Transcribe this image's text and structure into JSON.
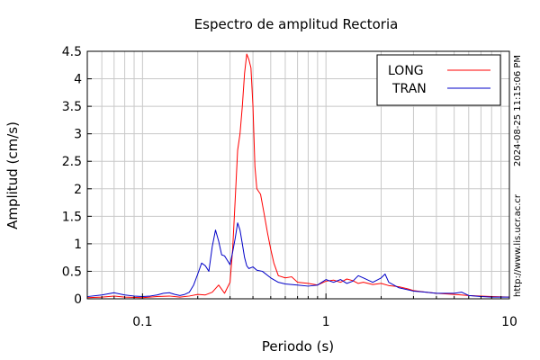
{
  "chart_data": {
    "type": "line",
    "title": "Espectro de amplitud Rectoria",
    "xlabel": "Periodo (s)",
    "ylabel": "Amplitud (cm/s)",
    "x_scale": "log",
    "xlim": [
      0.05,
      10
    ],
    "ylim": [
      0,
      4.5
    ],
    "x_ticks": [
      {
        "value": 0.1,
        "label": "0.1"
      },
      {
        "value": 1,
        "label": "1"
      },
      {
        "value": 10,
        "label": "10"
      }
    ],
    "y_ticks": [
      {
        "value": 0,
        "label": "0"
      },
      {
        "value": 0.5,
        "label": "0.5"
      },
      {
        "value": 1,
        "label": "1"
      },
      {
        "value": 1.5,
        "label": "1.5"
      },
      {
        "value": 2,
        "label": "2"
      },
      {
        "value": 2.5,
        "label": "2.5"
      },
      {
        "value": 3,
        "label": "3"
      },
      {
        "value": 3.5,
        "label": "3.5"
      },
      {
        "value": 4,
        "label": "4"
      },
      {
        "value": 4.5,
        "label": "4.5"
      }
    ],
    "grid": true,
    "legend_position": "top-right",
    "series": [
      {
        "name": "LONG",
        "color": "#ff0000",
        "points": [
          [
            0.05,
            0.02
          ],
          [
            0.06,
            0.03
          ],
          [
            0.07,
            0.05
          ],
          [
            0.08,
            0.03
          ],
          [
            0.1,
            0.02
          ],
          [
            0.12,
            0.04
          ],
          [
            0.14,
            0.05
          ],
          [
            0.16,
            0.03
          ],
          [
            0.18,
            0.05
          ],
          [
            0.2,
            0.08
          ],
          [
            0.22,
            0.07
          ],
          [
            0.24,
            0.12
          ],
          [
            0.26,
            0.25
          ],
          [
            0.28,
            0.1
          ],
          [
            0.3,
            0.3
          ],
          [
            0.31,
            0.9
          ],
          [
            0.32,
            1.8
          ],
          [
            0.33,
            2.7
          ],
          [
            0.34,
            3.0
          ],
          [
            0.35,
            3.5
          ],
          [
            0.36,
            4.1
          ],
          [
            0.37,
            4.45
          ],
          [
            0.38,
            4.35
          ],
          [
            0.39,
            4.2
          ],
          [
            0.4,
            3.5
          ],
          [
            0.41,
            2.4
          ],
          [
            0.42,
            2.0
          ],
          [
            0.44,
            1.9
          ],
          [
            0.46,
            1.55
          ],
          [
            0.48,
            1.2
          ],
          [
            0.5,
            0.9
          ],
          [
            0.52,
            0.65
          ],
          [
            0.55,
            0.42
          ],
          [
            0.6,
            0.38
          ],
          [
            0.65,
            0.4
          ],
          [
            0.7,
            0.3
          ],
          [
            0.8,
            0.28
          ],
          [
            0.9,
            0.25
          ],
          [
            1.0,
            0.32
          ],
          [
            1.1,
            0.34
          ],
          [
            1.2,
            0.3
          ],
          [
            1.3,
            0.36
          ],
          [
            1.4,
            0.33
          ],
          [
            1.5,
            0.28
          ],
          [
            1.6,
            0.3
          ],
          [
            1.8,
            0.26
          ],
          [
            2.0,
            0.28
          ],
          [
            2.2,
            0.24
          ],
          [
            2.5,
            0.22
          ],
          [
            2.8,
            0.18
          ],
          [
            3.0,
            0.15
          ],
          [
            3.5,
            0.12
          ],
          [
            4.0,
            0.1
          ],
          [
            5.0,
            0.08
          ],
          [
            6.0,
            0.06
          ],
          [
            7.0,
            0.05
          ],
          [
            8.0,
            0.04
          ],
          [
            10.0,
            0.03
          ]
        ]
      },
      {
        "name": "TRAN",
        "color": "#0000c8",
        "points": [
          [
            0.05,
            0.04
          ],
          [
            0.06,
            0.07
          ],
          [
            0.07,
            0.11
          ],
          [
            0.08,
            0.07
          ],
          [
            0.09,
            0.05
          ],
          [
            0.1,
            0.04
          ],
          [
            0.11,
            0.05
          ],
          [
            0.12,
            0.07
          ],
          [
            0.13,
            0.1
          ],
          [
            0.14,
            0.11
          ],
          [
            0.15,
            0.08
          ],
          [
            0.16,
            0.06
          ],
          [
            0.17,
            0.08
          ],
          [
            0.18,
            0.12
          ],
          [
            0.19,
            0.25
          ],
          [
            0.2,
            0.45
          ],
          [
            0.21,
            0.65
          ],
          [
            0.22,
            0.6
          ],
          [
            0.23,
            0.5
          ],
          [
            0.24,
            0.95
          ],
          [
            0.25,
            1.25
          ],
          [
            0.26,
            1.05
          ],
          [
            0.27,
            0.8
          ],
          [
            0.28,
            0.78
          ],
          [
            0.29,
            0.7
          ],
          [
            0.3,
            0.62
          ],
          [
            0.31,
            0.85
          ],
          [
            0.32,
            1.1
          ],
          [
            0.33,
            1.38
          ],
          [
            0.34,
            1.25
          ],
          [
            0.35,
            1.0
          ],
          [
            0.36,
            0.75
          ],
          [
            0.37,
            0.6
          ],
          [
            0.38,
            0.55
          ],
          [
            0.4,
            0.58
          ],
          [
            0.42,
            0.52
          ],
          [
            0.45,
            0.5
          ],
          [
            0.5,
            0.38
          ],
          [
            0.55,
            0.3
          ],
          [
            0.6,
            0.27
          ],
          [
            0.7,
            0.25
          ],
          [
            0.8,
            0.23
          ],
          [
            0.9,
            0.25
          ],
          [
            1.0,
            0.35
          ],
          [
            1.1,
            0.3
          ],
          [
            1.2,
            0.35
          ],
          [
            1.3,
            0.28
          ],
          [
            1.4,
            0.32
          ],
          [
            1.5,
            0.42
          ],
          [
            1.6,
            0.38
          ],
          [
            1.8,
            0.3
          ],
          [
            2.0,
            0.38
          ],
          [
            2.1,
            0.45
          ],
          [
            2.2,
            0.3
          ],
          [
            2.5,
            0.2
          ],
          [
            3.0,
            0.14
          ],
          [
            3.5,
            0.12
          ],
          [
            4.0,
            0.1
          ],
          [
            5.0,
            0.1
          ],
          [
            5.5,
            0.12
          ],
          [
            6.0,
            0.06
          ],
          [
            7.0,
            0.04
          ],
          [
            8.0,
            0.03
          ],
          [
            10.0,
            0.03
          ]
        ]
      }
    ],
    "side_texts": {
      "timestamp": "2024-08-25 11:15:06 PM",
      "url": "http://www.lis.ucr.ac.cr"
    }
  }
}
